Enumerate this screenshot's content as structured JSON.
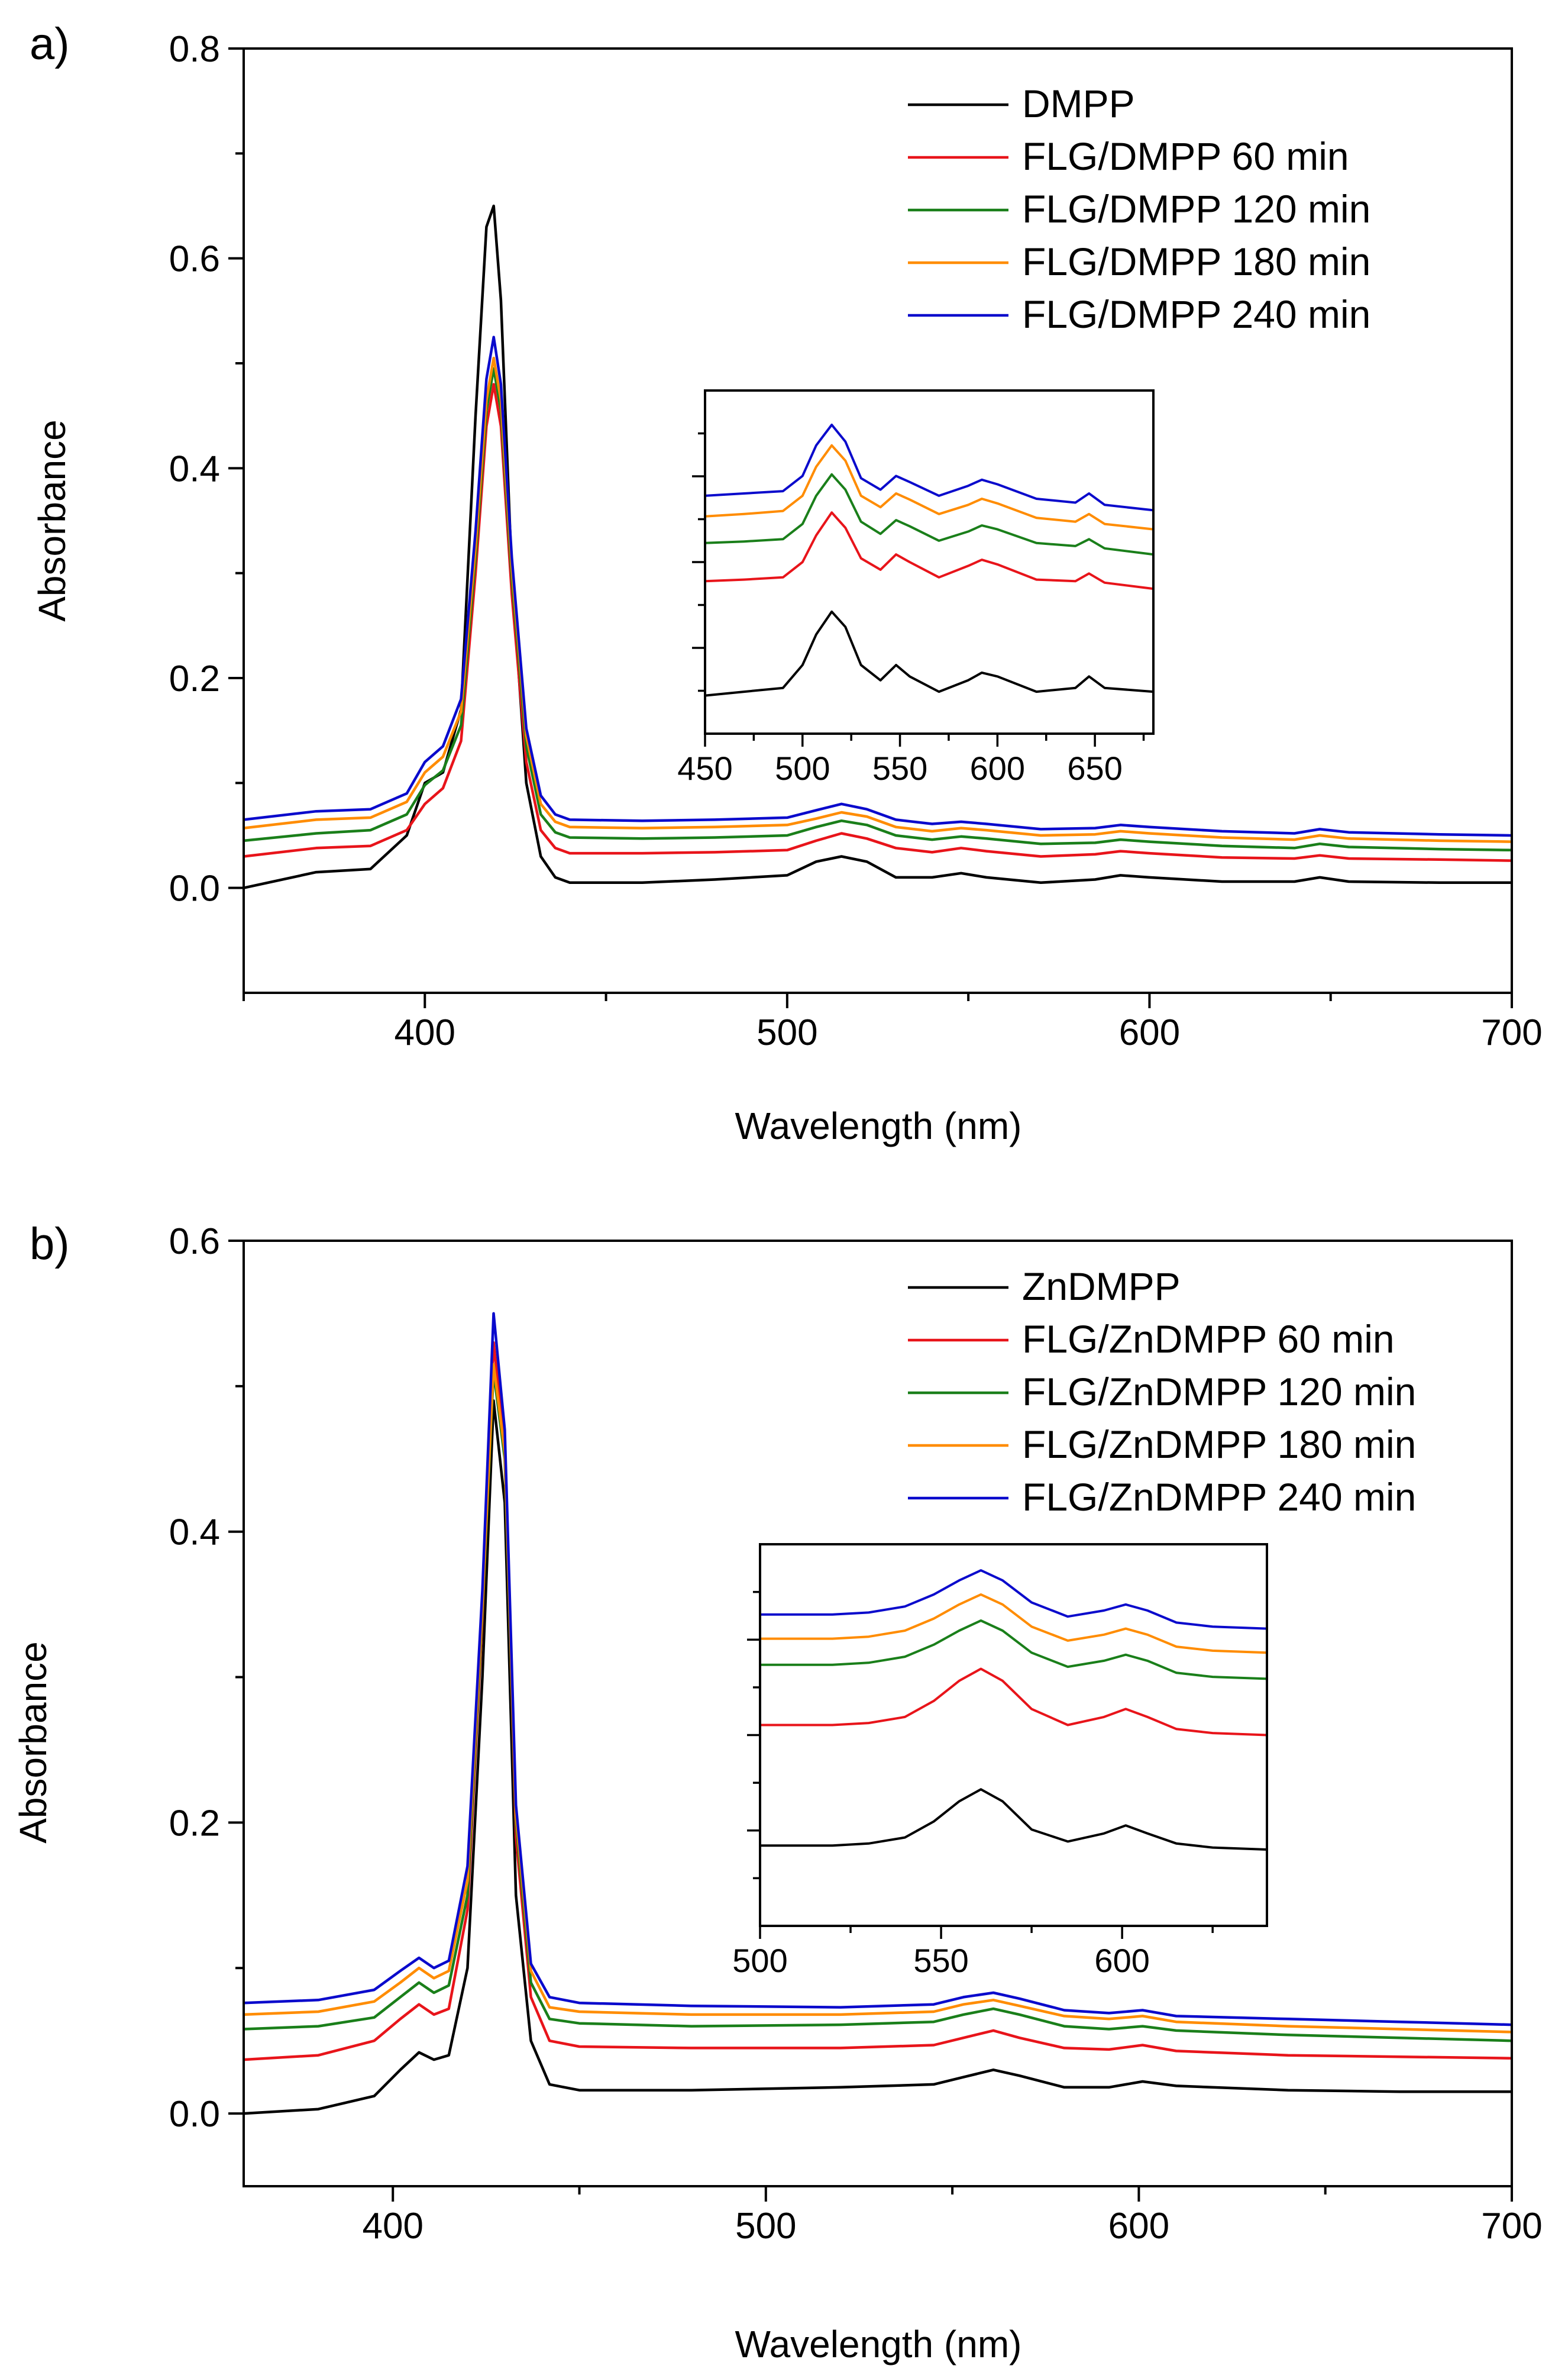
{
  "figure": {
    "panels": [
      {
        "panel_label": "a)",
        "xlabel": "Wavelength (nm)",
        "ylabel": "Absorbance",
        "legend": [
          "DMPP",
          "FLG/DMPP 60 min",
          "FLG/DMPP 120 min",
          "FLG/DMPP 180 min",
          "FLG/DMPP 240 min"
        ]
      },
      {
        "panel_label": "b)",
        "xlabel": "Wavelength (nm)",
        "ylabel": "Absorbance",
        "legend": [
          "ZnDMPP",
          "FLG/ZnDMPP 60 min",
          "FLG/ZnDMPP 120 min",
          "FLG/ZnDMPP 180 min",
          "FLG/ZnDMPP 240 min"
        ]
      }
    ]
  },
  "chart_data": [
    {
      "type": "line",
      "panel": "a)",
      "xlabel": "Wavelength (nm)",
      "ylabel": "Absorbance",
      "xlim": [
        350,
        700
      ],
      "ylim": [
        -0.1,
        0.8
      ],
      "xticks": [
        400,
        500,
        600,
        700
      ],
      "yticks": [
        0.0,
        0.2,
        0.4,
        0.6,
        0.8
      ],
      "ytick_labels": [
        "0.0",
        "0.2",
        "0.4",
        "0.6",
        "0.8"
      ],
      "legend_position": "top-right",
      "grid": false,
      "x": [
        350,
        370,
        385,
        395,
        400,
        405,
        410,
        414,
        417,
        419,
        421,
        424,
        428,
        432,
        436,
        440,
        460,
        480,
        500,
        508,
        515,
        522,
        530,
        540,
        548,
        555,
        570,
        585,
        592,
        600,
        620,
        640,
        647,
        655,
        680,
        700
      ],
      "series": [
        {
          "name": "DMPP",
          "color": "#000000",
          "values": [
            0.0,
            0.015,
            0.018,
            0.05,
            0.1,
            0.11,
            0.17,
            0.45,
            0.63,
            0.65,
            0.56,
            0.3,
            0.1,
            0.03,
            0.01,
            0.005,
            0.005,
            0.008,
            0.012,
            0.025,
            0.03,
            0.025,
            0.01,
            0.01,
            0.014,
            0.01,
            0.005,
            0.008,
            0.012,
            0.01,
            0.006,
            0.006,
            0.01,
            0.006,
            0.005,
            0.005
          ]
        },
        {
          "name": "FLG/DMPP 60 min",
          "color": "#e8141a",
          "values": [
            0.03,
            0.038,
            0.04,
            0.055,
            0.08,
            0.095,
            0.14,
            0.3,
            0.44,
            0.48,
            0.44,
            0.28,
            0.12,
            0.055,
            0.038,
            0.033,
            0.033,
            0.034,
            0.036,
            0.045,
            0.052,
            0.047,
            0.038,
            0.034,
            0.038,
            0.035,
            0.03,
            0.032,
            0.035,
            0.033,
            0.029,
            0.028,
            0.031,
            0.028,
            0.027,
            0.026
          ]
        },
        {
          "name": "FLG/DMPP 120 min",
          "color": "#1a7f1a",
          "values": [
            0.045,
            0.052,
            0.055,
            0.07,
            0.098,
            0.112,
            0.155,
            0.315,
            0.455,
            0.495,
            0.455,
            0.295,
            0.135,
            0.07,
            0.053,
            0.048,
            0.047,
            0.048,
            0.05,
            0.058,
            0.064,
            0.06,
            0.05,
            0.046,
            0.049,
            0.047,
            0.042,
            0.043,
            0.046,
            0.044,
            0.04,
            0.038,
            0.042,
            0.039,
            0.037,
            0.036
          ]
        },
        {
          "name": "FLG/DMPP 180 min",
          "color": "#ff8c00",
          "values": [
            0.057,
            0.065,
            0.067,
            0.082,
            0.11,
            0.125,
            0.168,
            0.325,
            0.465,
            0.505,
            0.465,
            0.305,
            0.145,
            0.08,
            0.063,
            0.058,
            0.057,
            0.058,
            0.06,
            0.066,
            0.072,
            0.068,
            0.058,
            0.054,
            0.057,
            0.055,
            0.05,
            0.051,
            0.054,
            0.052,
            0.048,
            0.046,
            0.05,
            0.047,
            0.045,
            0.044
          ]
        },
        {
          "name": "FLG/DMPP 240 min",
          "color": "#0a0acc",
          "values": [
            0.065,
            0.073,
            0.075,
            0.09,
            0.12,
            0.135,
            0.18,
            0.34,
            0.485,
            0.525,
            0.48,
            0.315,
            0.152,
            0.088,
            0.07,
            0.065,
            0.064,
            0.065,
            0.067,
            0.074,
            0.08,
            0.075,
            0.065,
            0.061,
            0.063,
            0.061,
            0.056,
            0.057,
            0.06,
            0.058,
            0.054,
            0.052,
            0.056,
            0.053,
            0.051,
            0.05
          ]
        }
      ],
      "inset": {
        "xlim": [
          450,
          680
        ],
        "xticks": [
          450,
          500,
          550,
          600,
          650
        ],
        "y_tick_marks_only": true,
        "x": [
          450,
          470,
          490,
          500,
          507,
          515,
          522,
          530,
          540,
          548,
          555,
          570,
          585,
          592,
          600,
          620,
          640,
          647,
          655,
          680
        ],
        "series": [
          {
            "name": "DMPP",
            "values": [
              0.0,
              0.005,
              0.01,
              0.04,
              0.08,
              0.11,
              0.09,
              0.04,
              0.02,
              0.04,
              0.025,
              0.005,
              0.02,
              0.03,
              0.025,
              0.005,
              0.01,
              0.025,
              0.01,
              0.005
            ]
          },
          {
            "name": "FLG/DMPP 60 min",
            "values": [
              0.15,
              0.152,
              0.155,
              0.175,
              0.21,
              0.24,
              0.22,
              0.18,
              0.165,
              0.185,
              0.175,
              0.155,
              0.17,
              0.178,
              0.172,
              0.152,
              0.15,
              0.16,
              0.148,
              0.14
            ]
          },
          {
            "name": "FLG/DMPP 120 min",
            "values": [
              0.2,
              0.202,
              0.205,
              0.225,
              0.262,
              0.29,
              0.27,
              0.228,
              0.212,
              0.23,
              0.222,
              0.203,
              0.215,
              0.223,
              0.218,
              0.2,
              0.196,
              0.205,
              0.193,
              0.185
            ]
          },
          {
            "name": "FLG/DMPP 180 min",
            "values": [
              0.235,
              0.238,
              0.242,
              0.262,
              0.3,
              0.328,
              0.308,
              0.262,
              0.247,
              0.265,
              0.257,
              0.238,
              0.25,
              0.258,
              0.252,
              0.233,
              0.228,
              0.238,
              0.225,
              0.218
            ]
          },
          {
            "name": "FLG/DMPP 240 min",
            "values": [
              0.262,
              0.265,
              0.268,
              0.288,
              0.328,
              0.355,
              0.333,
              0.285,
              0.27,
              0.288,
              0.28,
              0.262,
              0.275,
              0.283,
              0.277,
              0.258,
              0.253,
              0.265,
              0.25,
              0.243
            ]
          }
        ]
      }
    },
    {
      "type": "line",
      "panel": "b)",
      "xlabel": "Wavelength (nm)",
      "ylabel": "Absorbance",
      "xlim": [
        360,
        700
      ],
      "ylim": [
        -0.05,
        0.6
      ],
      "xticks": [
        400,
        500,
        600,
        700
      ],
      "yticks": [
        0.0,
        0.2,
        0.4,
        0.6
      ],
      "ytick_labels": [
        "0.0",
        "0.2",
        "0.4",
        "0.6"
      ],
      "legend_position": "top-right",
      "grid": false,
      "x": [
        360,
        380,
        395,
        402,
        407,
        411,
        415,
        420,
        424,
        427,
        430,
        433,
        437,
        442,
        450,
        480,
        520,
        545,
        553,
        561,
        568,
        580,
        592,
        601,
        610,
        640,
        670,
        700
      ],
      "series": [
        {
          "name": "ZnDMPP",
          "color": "#000000",
          "values": [
            0.0,
            0.003,
            0.012,
            0.03,
            0.042,
            0.037,
            0.04,
            0.1,
            0.3,
            0.49,
            0.42,
            0.15,
            0.05,
            0.02,
            0.016,
            0.016,
            0.018,
            0.02,
            0.025,
            0.03,
            0.026,
            0.018,
            0.018,
            0.022,
            0.019,
            0.016,
            0.015,
            0.015
          ]
        },
        {
          "name": "FLG/ZnDMPP 60 min",
          "color": "#e8141a",
          "values": [
            0.037,
            0.04,
            0.05,
            0.065,
            0.075,
            0.068,
            0.072,
            0.14,
            0.34,
            0.53,
            0.46,
            0.19,
            0.08,
            0.05,
            0.046,
            0.045,
            0.045,
            0.047,
            0.052,
            0.057,
            0.052,
            0.045,
            0.044,
            0.047,
            0.043,
            0.04,
            0.039,
            0.038
          ]
        },
        {
          "name": "FLG/ZnDMPP 120 min",
          "color": "#1a7f1a",
          "values": [
            0.058,
            0.06,
            0.066,
            0.08,
            0.09,
            0.083,
            0.088,
            0.15,
            0.345,
            0.51,
            0.45,
            0.2,
            0.09,
            0.065,
            0.062,
            0.06,
            0.061,
            0.063,
            0.068,
            0.072,
            0.068,
            0.06,
            0.058,
            0.06,
            0.057,
            0.054,
            0.052,
            0.05
          ]
        },
        {
          "name": "FLG/ZnDMPP 180 min",
          "color": "#ff8c00",
          "values": [
            0.068,
            0.07,
            0.077,
            0.09,
            0.1,
            0.093,
            0.098,
            0.16,
            0.35,
            0.515,
            0.455,
            0.205,
            0.098,
            0.073,
            0.07,
            0.068,
            0.068,
            0.07,
            0.075,
            0.078,
            0.074,
            0.067,
            0.065,
            0.067,
            0.063,
            0.06,
            0.058,
            0.056
          ]
        },
        {
          "name": "FLG/ZnDMPP 240 min",
          "color": "#0a0acc",
          "values": [
            0.076,
            0.078,
            0.085,
            0.098,
            0.107,
            0.1,
            0.105,
            0.17,
            0.36,
            0.55,
            0.47,
            0.212,
            0.103,
            0.08,
            0.076,
            0.074,
            0.073,
            0.075,
            0.08,
            0.083,
            0.079,
            0.071,
            0.069,
            0.071,
            0.067,
            0.065,
            0.063,
            0.061
          ]
        }
      ],
      "inset": {
        "xlim": [
          500,
          640
        ],
        "xticks": [
          500,
          550,
          600
        ],
        "y_tick_marks_only": true,
        "x": [
          500,
          510,
          520,
          530,
          540,
          548,
          555,
          561,
          567,
          575,
          585,
          595,
          601,
          607,
          615,
          625,
          640
        ],
        "series": [
          {
            "name": "ZnDMPP",
            "values": [
              0.0,
              0.0,
              0.0,
              0.001,
              0.004,
              0.012,
              0.022,
              0.028,
              0.022,
              0.008,
              0.002,
              0.006,
              0.01,
              0.006,
              0.001,
              -0.001,
              -0.002
            ]
          },
          {
            "name": "FLG/ZnDMPP 60 min",
            "values": [
              0.06,
              0.06,
              0.06,
              0.061,
              0.064,
              0.072,
              0.082,
              0.088,
              0.082,
              0.068,
              0.06,
              0.064,
              0.068,
              0.064,
              0.058,
              0.056,
              0.055
            ]
          },
          {
            "name": "FLG/ZnDMPP 120 min",
            "values": [
              0.09,
              0.09,
              0.09,
              0.091,
              0.094,
              0.1,
              0.107,
              0.112,
              0.107,
              0.096,
              0.089,
              0.092,
              0.095,
              0.092,
              0.086,
              0.084,
              0.083
            ]
          },
          {
            "name": "FLG/ZnDMPP 180 min",
            "values": [
              0.103,
              0.103,
              0.103,
              0.104,
              0.107,
              0.113,
              0.12,
              0.125,
              0.12,
              0.109,
              0.102,
              0.105,
              0.108,
              0.105,
              0.099,
              0.097,
              0.096
            ]
          },
          {
            "name": "FLG/ZnDMPP 240 min",
            "values": [
              0.115,
              0.115,
              0.115,
              0.116,
              0.119,
              0.125,
              0.132,
              0.137,
              0.132,
              0.121,
              0.114,
              0.117,
              0.12,
              0.117,
              0.111,
              0.109,
              0.108
            ]
          }
        ]
      }
    }
  ]
}
